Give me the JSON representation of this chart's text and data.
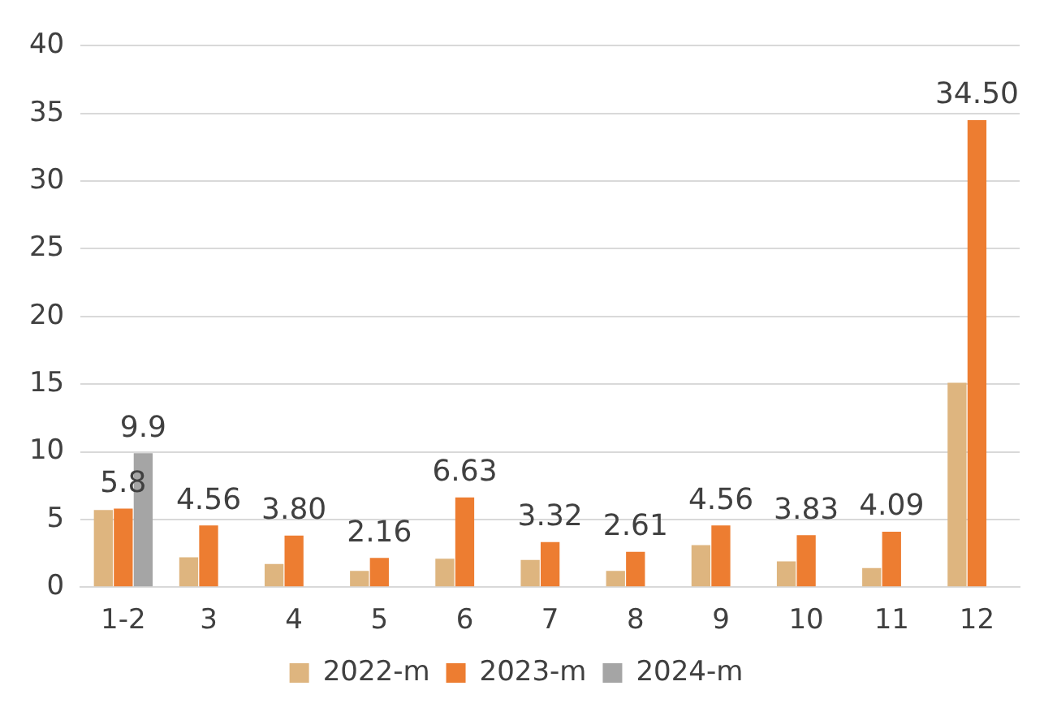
{
  "chart_data": {
    "type": "bar",
    "categories": [
      "1-2",
      "3",
      "4",
      "5",
      "6",
      "7",
      "8",
      "9",
      "10",
      "11",
      "12"
    ],
    "series": [
      {
        "name": "2022-m",
        "color": "#deb57f",
        "values": [
          5.7,
          2.2,
          1.7,
          1.2,
          2.1,
          2.0,
          1.2,
          3.1,
          1.9,
          1.4,
          15.1
        ]
      },
      {
        "name": "2023-m",
        "color": "#ed7d31",
        "values": [
          5.8,
          4.56,
          3.8,
          2.16,
          6.63,
          3.32,
          2.61,
          4.56,
          3.83,
          4.09,
          34.5
        ],
        "value_labels": [
          "5.8",
          "4.56",
          "3.80",
          "2.16",
          "6.63",
          "3.32",
          "2.61",
          "4.56",
          "3.83",
          "4.09",
          "34.50"
        ]
      },
      {
        "name": "2024-m",
        "color": "#a5a5a5",
        "values": [
          9.9,
          null,
          null,
          null,
          null,
          null,
          null,
          null,
          null,
          null,
          null
        ],
        "value_labels": [
          "9.9",
          null,
          null,
          null,
          null,
          null,
          null,
          null,
          null,
          null,
          null
        ]
      }
    ],
    "ylim": [
      0,
      40
    ],
    "yticks": [
      0,
      5,
      10,
      15,
      20,
      25,
      30,
      35,
      40
    ],
    "grid": "y",
    "legend": "bottom"
  }
}
